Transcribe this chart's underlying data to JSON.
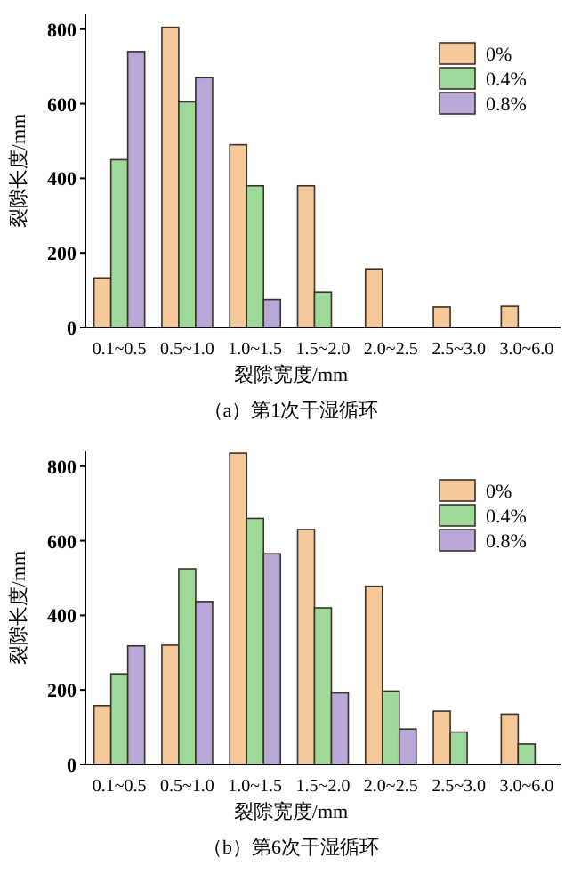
{
  "chart_data": [
    {
      "type": "bar",
      "title": "（a）第1次干湿循环",
      "xlabel": "裂隙宽度/mm",
      "ylabel": "裂隙长度/mm",
      "categories": [
        "0.1~0.5",
        "0.5~1.0",
        "1.0~1.5",
        "1.5~2.0",
        "2.0~2.5",
        "2.5~3.0",
        "3.0~6.0"
      ],
      "ylim": [
        0,
        840
      ],
      "yticks": [
        0,
        200,
        400,
        600,
        800
      ],
      "legend": "top right",
      "series": [
        {
          "name": "0%",
          "color": "#f5c99a",
          "values": [
            133,
            805,
            490,
            380,
            157,
            55,
            57
          ]
        },
        {
          "name": "0.4%",
          "color": "#9fd99a",
          "values": [
            450,
            605,
            380,
            95,
            null,
            null,
            null
          ]
        },
        {
          "name": "0.8%",
          "color": "#b8a8d8",
          "values": [
            740,
            670,
            75,
            null,
            null,
            null,
            null
          ]
        }
      ]
    },
    {
      "type": "bar",
      "title": "（b）第6次干湿循环",
      "xlabel": "裂隙宽度/mm",
      "ylabel": "裂隙长度/mm",
      "categories": [
        "0.1~0.5",
        "0.5~1.0",
        "1.0~1.5",
        "1.5~2.0",
        "2.0~2.5",
        "2.5~3.0",
        "3.0~6.0"
      ],
      "ylim": [
        0,
        840
      ],
      "yticks": [
        0,
        200,
        400,
        600,
        800
      ],
      "legend": "top right",
      "series": [
        {
          "name": "0%",
          "color": "#f5c99a",
          "values": [
            158,
            320,
            835,
            630,
            478,
            143,
            135
          ]
        },
        {
          "name": "0.4%",
          "color": "#9fd99a",
          "values": [
            243,
            525,
            660,
            420,
            197,
            87,
            55
          ]
        },
        {
          "name": "0.8%",
          "color": "#b8a8d8",
          "values": [
            318,
            437,
            565,
            192,
            95,
            null,
            null
          ]
        }
      ]
    }
  ]
}
